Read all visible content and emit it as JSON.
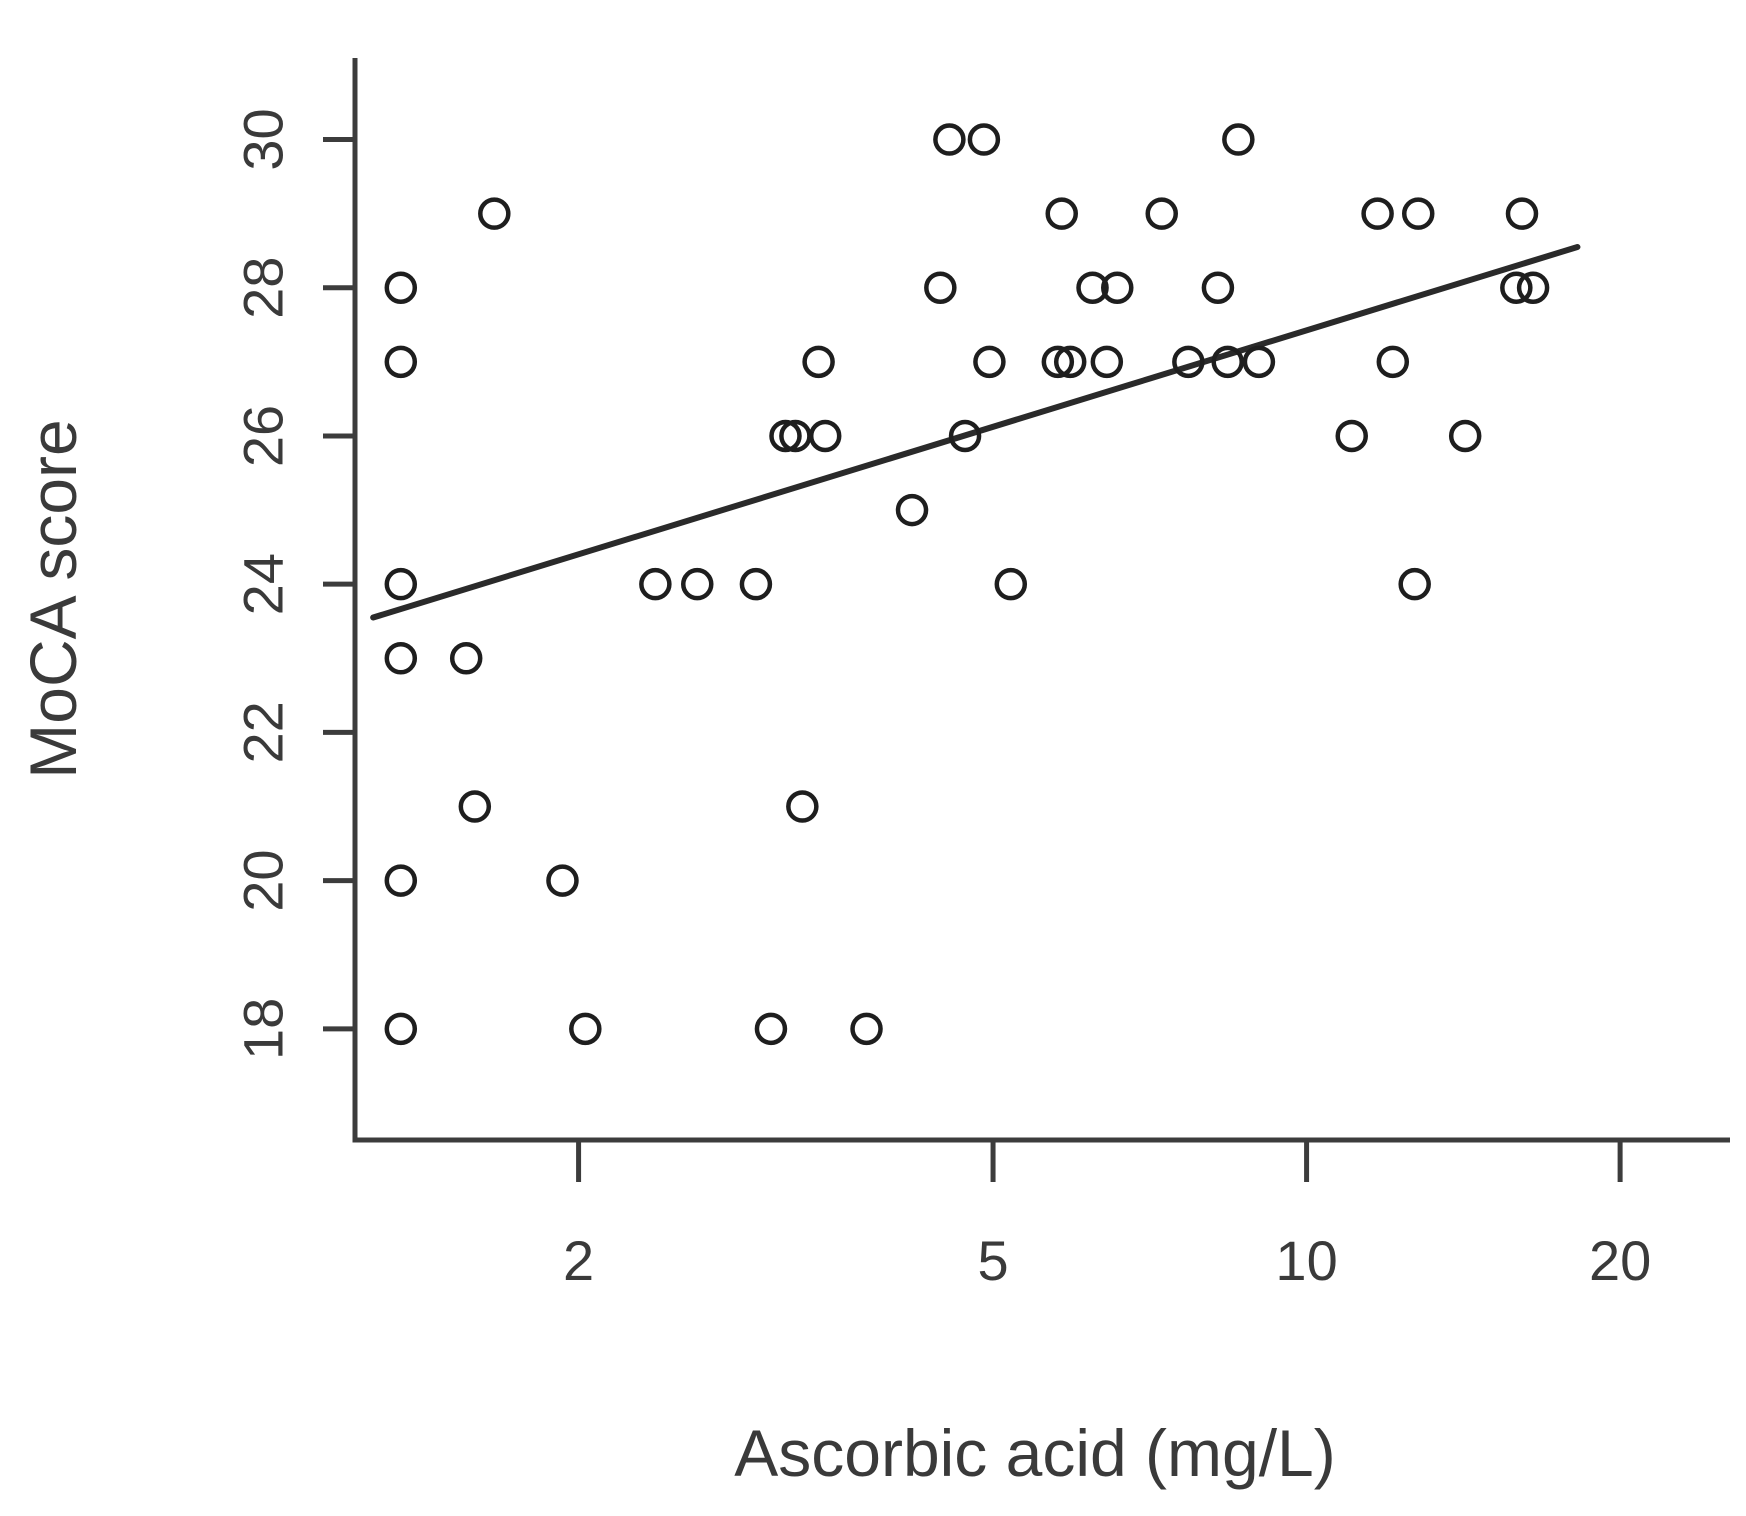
{
  "chart_data": {
    "type": "scatter",
    "title": "",
    "xlabel": "Ascorbic acid (mg/L)",
    "ylabel": "MoCA score",
    "x_scale": "log",
    "xlim": [
      1.22,
      25.5
    ],
    "ylim": [
      16.5,
      31.1
    ],
    "x_ticks": [
      {
        "value": 2,
        "label": "2"
      },
      {
        "value": 5,
        "label": "5"
      },
      {
        "value": 10,
        "label": "10"
      },
      {
        "value": 20,
        "label": "20"
      }
    ],
    "y_ticks": [
      {
        "value": 18,
        "label": "18"
      },
      {
        "value": 20,
        "label": "20"
      },
      {
        "value": 22,
        "label": "22"
      },
      {
        "value": 24,
        "label": "24"
      },
      {
        "value": 26,
        "label": "26"
      },
      {
        "value": 28,
        "label": "28"
      },
      {
        "value": 30,
        "label": "30"
      }
    ],
    "grid": false,
    "points": [
      {
        "x": 1.35,
        "y": 28
      },
      {
        "x": 1.35,
        "y": 27
      },
      {
        "x": 1.35,
        "y": 24
      },
      {
        "x": 1.35,
        "y": 23
      },
      {
        "x": 1.35,
        "y": 20
      },
      {
        "x": 1.35,
        "y": 18
      },
      {
        "x": 1.56,
        "y": 23
      },
      {
        "x": 1.59,
        "y": 21
      },
      {
        "x": 1.66,
        "y": 29
      },
      {
        "x": 1.93,
        "y": 20
      },
      {
        "x": 2.03,
        "y": 18
      },
      {
        "x": 2.37,
        "y": 24
      },
      {
        "x": 2.6,
        "y": 24
      },
      {
        "x": 2.96,
        "y": 24
      },
      {
        "x": 3.06,
        "y": 18
      },
      {
        "x": 3.16,
        "y": 26
      },
      {
        "x": 3.23,
        "y": 26
      },
      {
        "x": 3.28,
        "y": 21
      },
      {
        "x": 3.4,
        "y": 27
      },
      {
        "x": 3.45,
        "y": 26
      },
      {
        "x": 3.78,
        "y": 18
      },
      {
        "x": 4.18,
        "y": 25
      },
      {
        "x": 4.45,
        "y": 28
      },
      {
        "x": 4.54,
        "y": 30
      },
      {
        "x": 4.7,
        "y": 26
      },
      {
        "x": 4.9,
        "y": 30
      },
      {
        "x": 4.96,
        "y": 27
      },
      {
        "x": 5.2,
        "y": 24
      },
      {
        "x": 5.77,
        "y": 27
      },
      {
        "x": 5.82,
        "y": 29
      },
      {
        "x": 5.93,
        "y": 27
      },
      {
        "x": 6.23,
        "y": 28
      },
      {
        "x": 6.43,
        "y": 27
      },
      {
        "x": 6.58,
        "y": 28
      },
      {
        "x": 7.26,
        "y": 29
      },
      {
        "x": 7.7,
        "y": 27
      },
      {
        "x": 8.22,
        "y": 28
      },
      {
        "x": 8.4,
        "y": 27
      },
      {
        "x": 8.6,
        "y": 30
      },
      {
        "x": 9.0,
        "y": 27
      },
      {
        "x": 11.05,
        "y": 26
      },
      {
        "x": 11.7,
        "y": 29
      },
      {
        "x": 12.1,
        "y": 27
      },
      {
        "x": 12.7,
        "y": 24
      },
      {
        "x": 12.8,
        "y": 29
      },
      {
        "x": 14.2,
        "y": 26
      },
      {
        "x": 15.9,
        "y": 28
      },
      {
        "x": 16.1,
        "y": 29
      },
      {
        "x": 16.5,
        "y": 28
      }
    ],
    "fit_line": {
      "x": [
        1.27,
        18.2
      ],
      "y": [
        23.55,
        28.55
      ]
    }
  }
}
